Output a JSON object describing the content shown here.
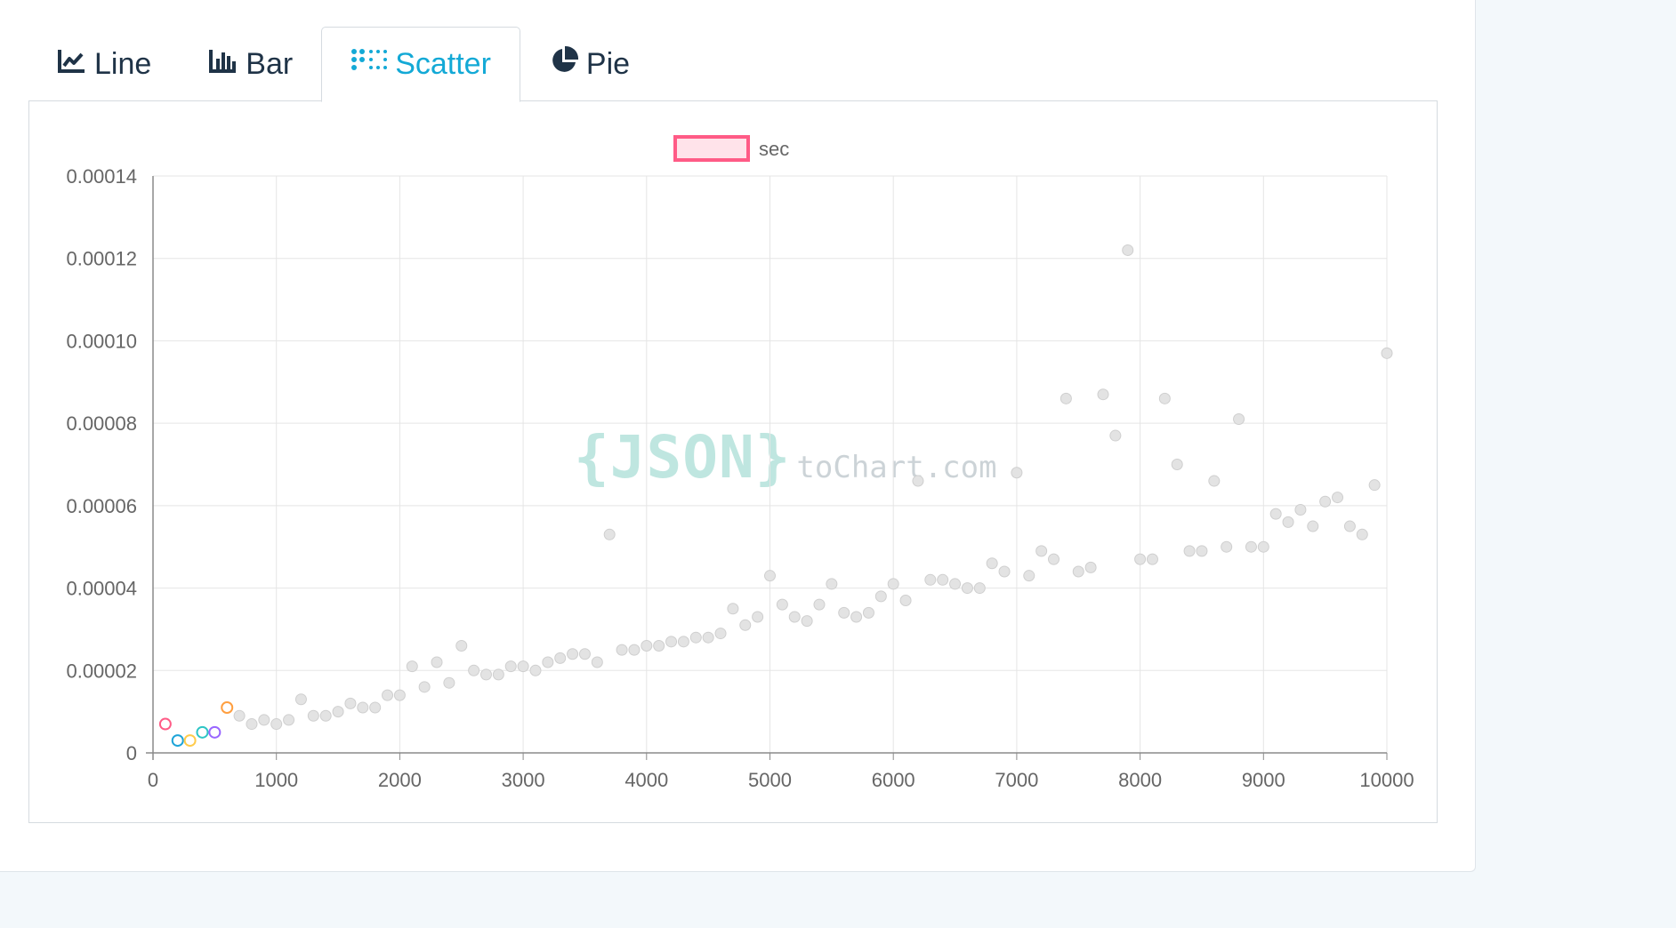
{
  "tabs": [
    {
      "label": "Line",
      "icon": "line-chart-icon",
      "active": false
    },
    {
      "label": "Bar",
      "icon": "bar-chart-icon",
      "active": false
    },
    {
      "label": "Scatter",
      "icon": "scatter-chart-icon",
      "active": true
    },
    {
      "label": "Pie",
      "icon": "pie-chart-icon",
      "active": false
    }
  ],
  "colors": {
    "tab_text": "#1f3347",
    "tab_active": "#13a9d6",
    "point_fill": "#e3e3e3",
    "point_stroke": "#cfcfcf",
    "legend_stroke": "#ff5b86",
    "legend_fill": "#ffe3ea",
    "grid": "#e5e5e5"
  },
  "watermark": {
    "brace_text": "{JSON}",
    "site_text": "toChart.com"
  },
  "chart_data": {
    "type": "scatter",
    "legend": {
      "label": "sec",
      "position": "top"
    },
    "xlim": [
      0,
      10000
    ],
    "ylim": [
      0,
      0.00014
    ],
    "x_ticks": [
      "0",
      "1000",
      "2000",
      "3000",
      "4000",
      "5000",
      "6000",
      "7000",
      "8000",
      "9000",
      "10000"
    ],
    "y_ticks": [
      "0",
      "0.00002",
      "0.00004",
      "0.00006",
      "0.00008",
      "0.00010",
      "0.00012",
      "0.00014"
    ],
    "grid": true,
    "highlight_colors": [
      "#ff5b86",
      "#1ea4d8",
      "#ffcb4b",
      "#2ec5c5",
      "#9966ff",
      "#ff9f40"
    ],
    "series": [
      {
        "name": "sec",
        "x": [
          100,
          200,
          300,
          400,
          500,
          600,
          700,
          800,
          900,
          1000,
          1100,
          1200,
          1300,
          1400,
          1500,
          1600,
          1700,
          1800,
          1900,
          2000,
          2100,
          2200,
          2300,
          2400,
          2500,
          2600,
          2700,
          2800,
          2900,
          3000,
          3100,
          3200,
          3300,
          3400,
          3500,
          3600,
          3700,
          3800,
          3900,
          4000,
          4100,
          4200,
          4300,
          4400,
          4500,
          4600,
          4700,
          4800,
          4900,
          5000,
          5100,
          5200,
          5300,
          5400,
          5500,
          5600,
          5700,
          5800,
          5900,
          6000,
          6100,
          6200,
          6300,
          6400,
          6500,
          6600,
          6700,
          6800,
          6900,
          7000,
          7100,
          7200,
          7300,
          7400,
          7500,
          7600,
          7700,
          7800,
          7900,
          8000,
          8100,
          8200,
          8300,
          8400,
          8500,
          8600,
          8700,
          8800,
          8900,
          9000,
          9100,
          9200,
          9300,
          9400,
          9500,
          9600,
          9700,
          9800,
          9900,
          10000
        ],
        "y": [
          7e-06,
          3e-06,
          3e-06,
          5e-06,
          5e-06,
          1.1e-05,
          9e-06,
          7e-06,
          8e-06,
          7e-06,
          8e-06,
          1.3e-05,
          9e-06,
          9e-06,
          1e-05,
          1.2e-05,
          1.1e-05,
          1.1e-05,
          1.4e-05,
          1.4e-05,
          2.1e-05,
          1.6e-05,
          2.2e-05,
          1.7e-05,
          2.6e-05,
          2e-05,
          1.9e-05,
          1.9e-05,
          2.1e-05,
          2.1e-05,
          2e-05,
          2.2e-05,
          2.3e-05,
          2.4e-05,
          2.4e-05,
          2.2e-05,
          5.3e-05,
          2.5e-05,
          2.5e-05,
          2.6e-05,
          2.6e-05,
          2.7e-05,
          2.7e-05,
          2.8e-05,
          2.8e-05,
          2.9e-05,
          3.5e-05,
          3.1e-05,
          3.3e-05,
          4.3e-05,
          3.6e-05,
          3.3e-05,
          3.2e-05,
          3.6e-05,
          4.1e-05,
          3.4e-05,
          3.3e-05,
          3.4e-05,
          3.8e-05,
          4.1e-05,
          3.7e-05,
          6.6e-05,
          4.2e-05,
          4.2e-05,
          4.1e-05,
          4e-05,
          4e-05,
          4.6e-05,
          4.4e-05,
          6.8e-05,
          4.3e-05,
          4.9e-05,
          4.7e-05,
          8.6e-05,
          4.4e-05,
          4.5e-05,
          8.7e-05,
          7.7e-05,
          0.000122,
          4.7e-05,
          4.7e-05,
          8.6e-05,
          7e-05,
          4.9e-05,
          4.9e-05,
          6.6e-05,
          5e-05,
          8.1e-05,
          5e-05,
          5e-05,
          5.8e-05,
          5.6e-05,
          5.9e-05,
          5.5e-05,
          6.1e-05,
          6.2e-05,
          5.5e-05,
          5.3e-05,
          6.5e-05,
          9.7e-05
        ]
      }
    ]
  }
}
